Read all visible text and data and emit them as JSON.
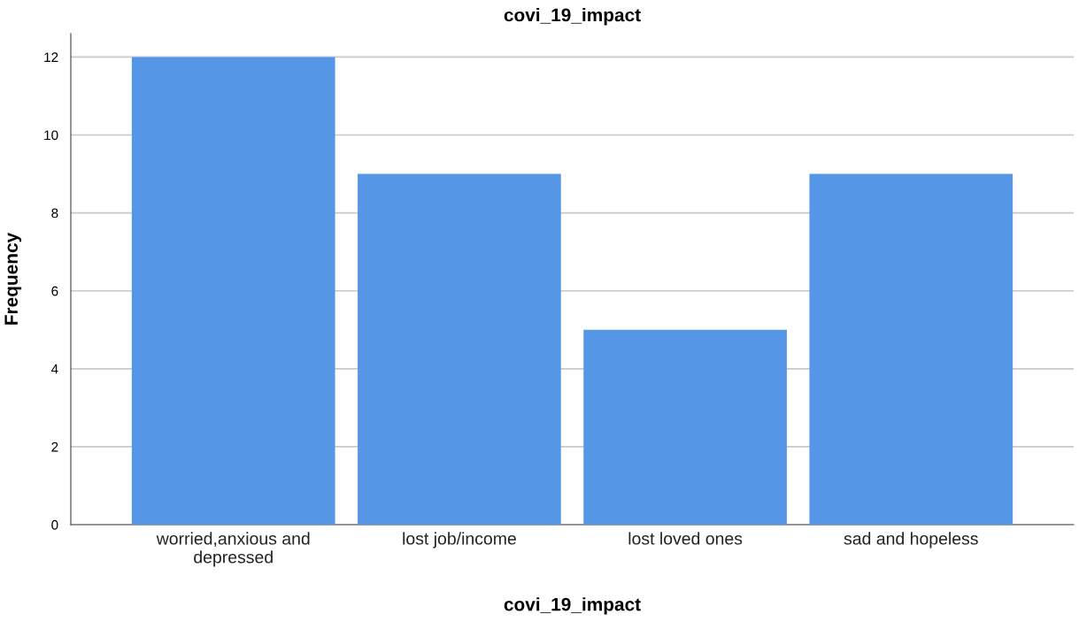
{
  "chart_data": {
    "type": "bar",
    "title": "covi_19_impact",
    "xlabel": "covi_19_impact",
    "ylabel": "Frequency",
    "categories": [
      "worried,anxious and\ndepressed",
      "lost job/income",
      "lost loved ones",
      "sad and hopeless"
    ],
    "values": [
      12,
      9,
      5,
      9
    ],
    "color": "#5596e6",
    "ylim": [
      0,
      12.6
    ],
    "yticks": [
      0,
      2,
      4,
      6,
      8,
      10,
      12
    ],
    "grid": "y",
    "legend": false
  }
}
